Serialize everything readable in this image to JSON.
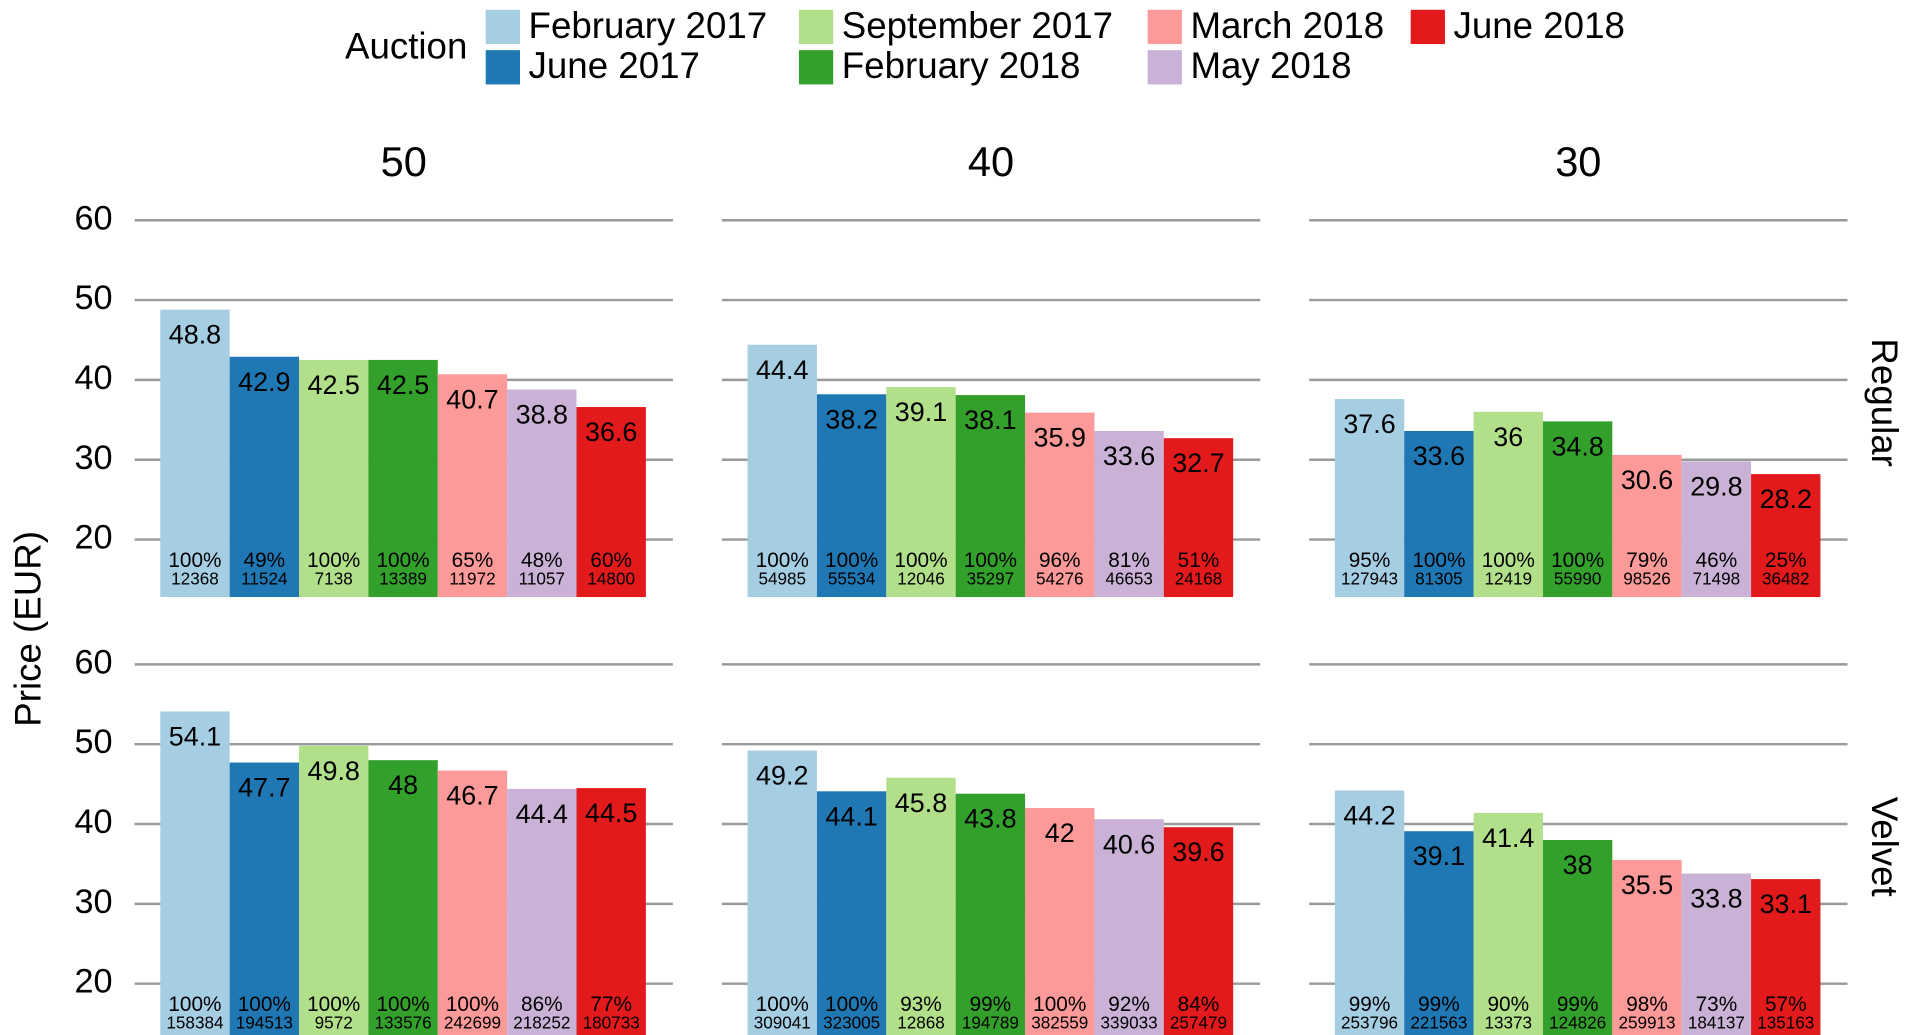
{
  "chart_data": {
    "type": "bar",
    "legend_title": "Auction",
    "ylabel": "Price (EUR)",
    "columns": [
      "50",
      "40",
      "30"
    ],
    "rows": [
      "Regular",
      "Velvet"
    ],
    "ylim": [
      12.8,
      61.5
    ],
    "yticks": [
      20,
      30,
      40,
      50,
      60
    ],
    "grid": true,
    "legend": "top",
    "series": [
      {
        "name": "February 2017",
        "color": "#a6cee3"
      },
      {
        "name": "June 2017",
        "color": "#1f78b4"
      },
      {
        "name": "September 2017",
        "color": "#b2df8a"
      },
      {
        "name": "February 2018",
        "color": "#33a02c"
      },
      {
        "name": "March 2018",
        "color": "#fb9a99"
      },
      {
        "name": "May 2018",
        "color": "#cab2d6"
      },
      {
        "name": "June 2018",
        "color": "#e31a1c"
      }
    ],
    "panels": [
      {
        "values": [
          48.8,
          42.9,
          42.5,
          42.5,
          40.7,
          38.8,
          36.6
        ],
        "shares": [
          "100%",
          "49%",
          "100%",
          "100%",
          "65%",
          "48%",
          "60%"
        ],
        "counts": [
          12368,
          11524,
          7138,
          13389,
          11972,
          11057,
          14800
        ]
      },
      {
        "values": [
          44.4,
          38.2,
          39.1,
          38.1,
          35.9,
          33.6,
          32.7
        ],
        "shares": [
          "100%",
          "100%",
          "100%",
          "100%",
          "96%",
          "81%",
          "51%"
        ],
        "counts": [
          54985,
          55534,
          12046,
          35297,
          54276,
          46653,
          24168
        ]
      },
      {
        "values": [
          37.6,
          33.6,
          36,
          34.8,
          30.6,
          29.8,
          28.2
        ],
        "shares": [
          "95%",
          "100%",
          "100%",
          "100%",
          "79%",
          "46%",
          "25%"
        ],
        "counts": [
          127943,
          81305,
          12419,
          55990,
          98526,
          71498,
          36482
        ]
      },
      {
        "values": [
          54.1,
          47.7,
          49.8,
          48,
          46.7,
          44.4,
          44.5
        ],
        "shares": [
          "100%",
          "100%",
          "100%",
          "100%",
          "100%",
          "86%",
          "77%"
        ],
        "counts": [
          158384,
          194513,
          9572,
          133576,
          242699,
          218252,
          180733
        ]
      },
      {
        "values": [
          49.2,
          44.1,
          45.8,
          43.8,
          42,
          40.6,
          39.6
        ],
        "shares": [
          "100%",
          "100%",
          "93%",
          "99%",
          "100%",
          "92%",
          "84%"
        ],
        "counts": [
          309041,
          323005,
          12868,
          194789,
          382559,
          339033,
          257479
        ]
      },
      {
        "values": [
          44.2,
          39.1,
          41.4,
          38,
          35.5,
          33.8,
          33.1
        ],
        "shares": [
          "99%",
          "99%",
          "90%",
          "99%",
          "98%",
          "73%",
          "57%"
        ],
        "counts": [
          253796,
          221563,
          13373,
          124826,
          259913,
          184137,
          135163
        ]
      }
    ]
  }
}
